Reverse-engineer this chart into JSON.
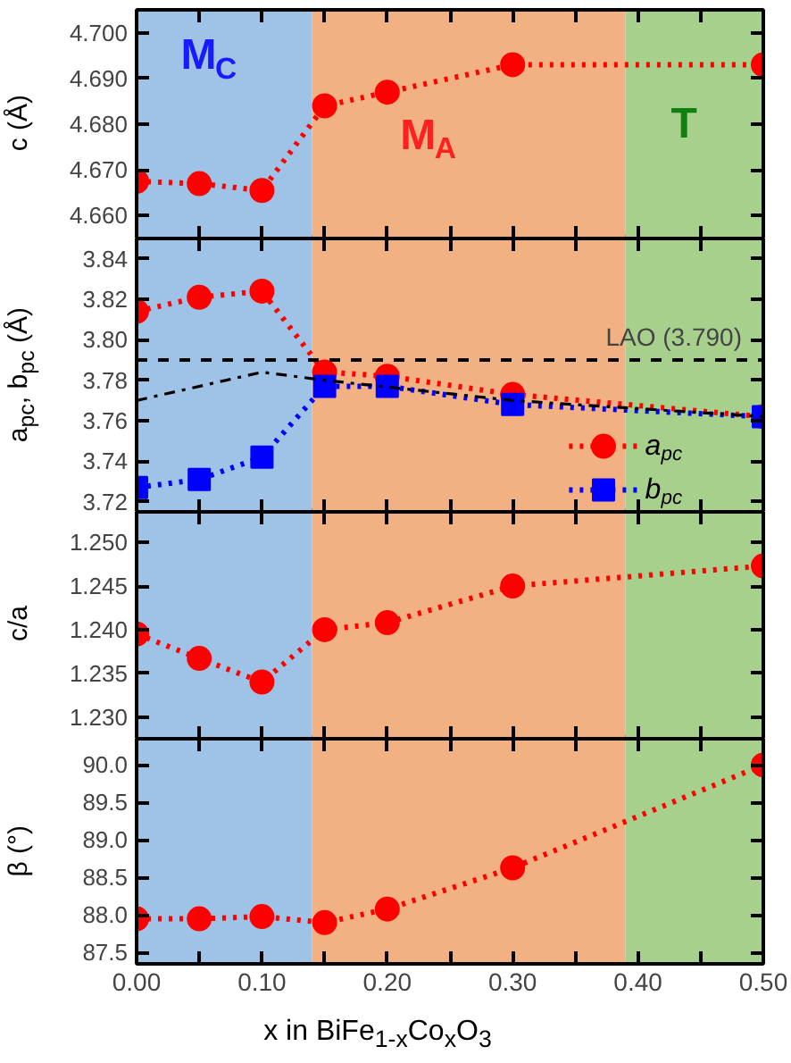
{
  "chart_data": [
    {
      "type": "line",
      "ylabel": "c (Å)",
      "x": [
        0,
        0.05,
        0.1,
        0.15,
        0.2,
        0.3,
        0.5
      ],
      "xlim": [
        0,
        0.5
      ],
      "xticks": [
        {
          "value": 0,
          "label": null
        },
        {
          "value": 0.05,
          "label": null
        },
        {
          "value": 0.1,
          "label": null
        },
        {
          "value": 0.15,
          "label": null
        },
        {
          "value": 0.2,
          "label": null
        },
        {
          "value": 0.25,
          "label": null
        },
        {
          "value": 0.3,
          "label": null
        },
        {
          "value": 0.35,
          "label": null
        },
        {
          "value": 0.4,
          "label": null
        },
        {
          "value": 0.45,
          "label": null
        },
        {
          "value": 0.5,
          "label": null
        }
      ],
      "ylim": [
        4.655,
        4.705
      ],
      "yticks": [
        {
          "value": 4.66,
          "label": "4.660"
        },
        {
          "value": 4.67,
          "label": "4.670"
        },
        {
          "value": 4.68,
          "label": "4.680"
        },
        {
          "value": 4.69,
          "label": "4.690"
        },
        {
          "value": 4.7,
          "label": "4.700"
        }
      ],
      "series": [
        {
          "color": "#ff0000",
          "marker": "circle",
          "line_style": "dotted",
          "values": [
            4.6675,
            4.667,
            4.6655,
            4.684,
            4.687,
            4.693,
            4.693
          ]
        }
      ],
      "bands": [
        {
          "axis": "x",
          "from": 0,
          "to": 0.14,
          "color": "#9fc3e6"
        },
        {
          "axis": "x",
          "from": 0.14,
          "to": 0.39,
          "color": "#f2b183"
        },
        {
          "axis": "x",
          "from": 0.39,
          "to": 0.5,
          "color": "#a8d08d"
        }
      ],
      "annotations": [
        "M$_{C}$",
        "M$_{A}$",
        "T"
      ],
      "grid": false,
      "legend": false,
      "tick_labels": "y"
    },
    {
      "type": "line",
      "ylabel": "a$_{pc}$, b$_{pc}$ (Å)",
      "x": [
        0,
        0.05,
        0.1,
        0.15,
        0.2,
        0.3,
        0.5
      ],
      "xlim": [
        0,
        0.5
      ],
      "xticks": [
        {
          "value": 0,
          "label": null
        },
        {
          "value": 0.05,
          "label": null
        },
        {
          "value": 0.1,
          "label": null
        },
        {
          "value": 0.15,
          "label": null
        },
        {
          "value": 0.2,
          "label": null
        },
        {
          "value": 0.25,
          "label": null
        },
        {
          "value": 0.3,
          "label": null
        },
        {
          "value": 0.35,
          "label": null
        },
        {
          "value": 0.4,
          "label": null
        },
        {
          "value": 0.45,
          "label": null
        },
        {
          "value": 0.5,
          "label": null
        }
      ],
      "ylim": [
        3.715,
        3.85
      ],
      "yticks": [
        3.72,
        3.74,
        3.76,
        3.78,
        {
          "value": 3.8,
          "label": "3.80"
        },
        3.82,
        3.84
      ],
      "series": [
        {
          "name": "a$_{pc}$",
          "color": "#ff0000",
          "marker": "circle",
          "line_style": "dotted",
          "values": [
            3.814,
            3.821,
            3.824,
            3.784,
            3.782,
            3.773,
            3.762
          ]
        },
        {
          "name": "b$_{pc}$",
          "color": "#0000ff",
          "marker": "square",
          "line_style": "dotted",
          "values": [
            3.727,
            3.731,
            3.742,
            3.777,
            3.777,
            3.768,
            3.762
          ]
        },
        {
          "color": "#000000",
          "marker": "none",
          "line_style": "dashdot",
          "x": [
            0,
            0.1,
            0.15,
            0.3,
            0.5
          ],
          "values": [
            3.77,
            3.784,
            3.78,
            3.77,
            3.762
          ]
        }
      ],
      "ref_lines": [
        {
          "axis": "y",
          "value": 3.79,
          "label": "LAO (3.790)",
          "color": "#000000",
          "line_style": "dashed"
        }
      ],
      "bands": [
        {
          "axis": "x",
          "from": 0,
          "to": 0.14,
          "color": "#9fc3e6"
        },
        {
          "axis": "x",
          "from": 0.14,
          "to": 0.39,
          "color": "#f2b183"
        },
        {
          "axis": "x",
          "from": 0.39,
          "to": 0.5,
          "color": "#a8d08d"
        }
      ],
      "grid": false,
      "legend": "bottom right",
      "tick_labels": "y"
    },
    {
      "type": "line",
      "ylabel": "c/a",
      "x": [
        0,
        0.05,
        0.1,
        0.15,
        0.2,
        0.3,
        0.5
      ],
      "xlim": [
        0,
        0.5
      ],
      "xticks": [
        {
          "value": 0,
          "label": null
        },
        {
          "value": 0.05,
          "label": null
        },
        {
          "value": 0.1,
          "label": null
        },
        {
          "value": 0.15,
          "label": null
        },
        {
          "value": 0.2,
          "label": null
        },
        {
          "value": 0.25,
          "label": null
        },
        {
          "value": 0.3,
          "label": null
        },
        {
          "value": 0.35,
          "label": null
        },
        {
          "value": 0.4,
          "label": null
        },
        {
          "value": 0.45,
          "label": null
        },
        {
          "value": 0.5,
          "label": null
        }
      ],
      "ylim": [
        1.2275,
        1.2535
      ],
      "yticks": [
        {
          "value": 1.23,
          "label": "1.230"
        },
        {
          "value": 1.235,
          "label": "1.235"
        },
        {
          "value": 1.24,
          "label": "1.240"
        },
        {
          "value": 1.245,
          "label": "1.245"
        },
        {
          "value": 1.25,
          "label": "1.250"
        }
      ],
      "series": [
        {
          "color": "#ff0000",
          "marker": "circle",
          "line_style": "dotted",
          "values": [
            1.2395,
            1.2367,
            1.234,
            1.24,
            1.2408,
            1.245,
            1.2473
          ]
        }
      ],
      "bands": [
        {
          "axis": "x",
          "from": 0,
          "to": 0.14,
          "color": "#9fc3e6"
        },
        {
          "axis": "x",
          "from": 0.14,
          "to": 0.39,
          "color": "#f2b183"
        },
        {
          "axis": "x",
          "from": 0.39,
          "to": 0.5,
          "color": "#a8d08d"
        }
      ],
      "grid": false,
      "legend": false,
      "tick_labels": "y"
    },
    {
      "type": "line",
      "ylabel": "β (°)",
      "xlabel": "x in BiFe$_{1-x}$Co$_{x}$O$_{3}$",
      "x": [
        0,
        0.05,
        0.1,
        0.15,
        0.2,
        0.3,
        0.5
      ],
      "xlim": [
        0,
        0.5
      ],
      "xticks": [
        {
          "value": 0,
          "label": "0.00"
        },
        {
          "value": 0.05,
          "label": null
        },
        {
          "value": 0.1,
          "label": "0.10"
        },
        {
          "value": 0.15,
          "label": null
        },
        {
          "value": 0.2,
          "label": "0.20"
        },
        {
          "value": 0.25,
          "label": null
        },
        {
          "value": 0.3,
          "label": "0.30"
        },
        {
          "value": 0.35,
          "label": null
        },
        {
          "value": 0.4,
          "label": "0.40"
        },
        {
          "value": 0.45,
          "label": null
        },
        {
          "value": 0.5,
          "label": "0.50"
        }
      ],
      "ylim": [
        87.35,
        90.35
      ],
      "yticks": [
        {
          "value": 87.5,
          "label": "87.5"
        },
        {
          "value": 88,
          "label": "88.0"
        },
        {
          "value": 88.5,
          "label": "88.5"
        },
        {
          "value": 89,
          "label": "89.0"
        },
        {
          "value": 89.5,
          "label": "89.5"
        },
        {
          "value": 90,
          "label": "90.0"
        }
      ],
      "series": [
        {
          "color": "#ff0000",
          "marker": "circle",
          "line_style": "dotted",
          "values": [
            87.95,
            87.95,
            87.98,
            87.9,
            88.08,
            88.63,
            90.0
          ]
        }
      ],
      "bands": [
        {
          "axis": "x",
          "from": 0,
          "to": 0.14,
          "color": "#9fc3e6"
        },
        {
          "axis": "x",
          "from": 0.14,
          "to": 0.39,
          "color": "#f2b183"
        },
        {
          "axis": "x",
          "from": 0.39,
          "to": 0.5,
          "color": "#a8d08d"
        }
      ],
      "grid": false,
      "legend": false
    }
  ]
}
